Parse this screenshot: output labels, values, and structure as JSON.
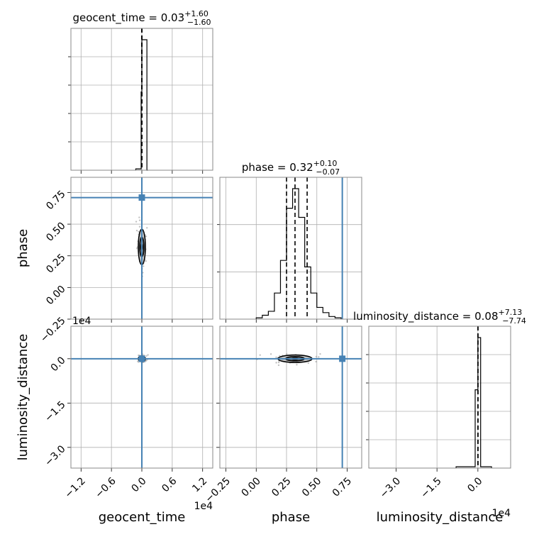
{
  "chart_data": {
    "type": "corner",
    "parameters": [
      "geocent_time",
      "phase",
      "luminosity_distance"
    ],
    "truth_color": "#4682b4",
    "line_color": "#000000",
    "grid": true,
    "panels": {
      "geocent_time_hist": {
        "title": "geocent_time = 0.03",
        "title_sup": "+1.60",
        "title_sub": "−1.60",
        "xlim": [
          -14000,
          14000
        ],
        "bins": [
          {
            "x0": -1200,
            "x1": -140,
            "h": 0.01
          },
          {
            "x0": -140,
            "x1": 0,
            "h": 0.6
          },
          {
            "x0": 0,
            "x1": 1000,
            "h": 1.0
          },
          {
            "x0": 1000,
            "x1": 1200,
            "h": 0.0
          }
        ],
        "quantiles": [
          -1.57,
          0.03,
          1.63
        ]
      },
      "phase_hist": {
        "title": "phase = 0.32",
        "title_sup": "+0.10",
        "title_sub": "−0.07",
        "xlim": [
          -0.3,
          0.87
        ],
        "bins": [
          {
            "x0": 0.0,
            "x1": 0.05,
            "h": 0.01
          },
          {
            "x0": 0.05,
            "x1": 0.1,
            "h": 0.03
          },
          {
            "x0": 0.1,
            "x1": 0.15,
            "h": 0.06
          },
          {
            "x0": 0.15,
            "x1": 0.2,
            "h": 0.2
          },
          {
            "x0": 0.2,
            "x1": 0.25,
            "h": 0.45
          },
          {
            "x0": 0.25,
            "x1": 0.3,
            "h": 0.85
          },
          {
            "x0": 0.3,
            "x1": 0.35,
            "h": 1.0
          },
          {
            "x0": 0.35,
            "x1": 0.4,
            "h": 0.78
          },
          {
            "x0": 0.4,
            "x1": 0.45,
            "h": 0.4
          },
          {
            "x0": 0.45,
            "x1": 0.5,
            "h": 0.2
          },
          {
            "x0": 0.5,
            "x1": 0.55,
            "h": 0.09
          },
          {
            "x0": 0.55,
            "x1": 0.6,
            "h": 0.05
          },
          {
            "x0": 0.6,
            "x1": 0.65,
            "h": 0.02
          },
          {
            "x0": 0.65,
            "x1": 0.7,
            "h": 0.01
          }
        ],
        "quantiles": [
          0.25,
          0.32,
          0.42
        ],
        "truth": 0.71
      },
      "luminosity_distance_hist": {
        "title": "luminosity_distance = 0.08",
        "title_sup": "+7.13",
        "title_sub": "−7.74",
        "xlim": [
          -40000,
          12000
        ],
        "bins": [
          {
            "x0": -8000,
            "x1": -1000,
            "h": 0.01
          },
          {
            "x0": -1000,
            "x1": 0,
            "h": 0.6
          },
          {
            "x0": 0,
            "x1": 1000,
            "h": 1.0
          },
          {
            "x0": 1000,
            "x1": 5000,
            "h": 0.01
          }
        ],
        "quantiles": [
          -7.66,
          0.08,
          7.21
        ]
      },
      "phase_vs_geocent_time": {
        "xlim": [
          -14000,
          14000
        ],
        "ylim": [
          -0.25,
          0.87
        ],
        "truth": {
          "x": 0,
          "y": 0.71
        },
        "contours": {
          "center_x": 0,
          "center_y": 0.32,
          "spread_x": 500,
          "spread_y": 0.1
        }
      },
      "luminosity_distance_vs_geocent_time": {
        "xlim": [
          -14000,
          14000
        ],
        "ylim": [
          -37000,
          11000
        ],
        "truth": {
          "x": 0,
          "y": 0
        },
        "contours": {
          "center_x": 0,
          "center_y": 0,
          "spread_x": 500,
          "spread_y": 700
        }
      },
      "luminosity_distance_vs_phase": {
        "xlim": [
          -0.3,
          0.87
        ],
        "ylim": [
          -37000,
          11000
        ],
        "truth": {
          "x": 0.71,
          "y": 0
        },
        "contours": {
          "center_x": 0.32,
          "center_y": 0,
          "spread_x": 0.1,
          "spread_y": 900
        }
      }
    },
    "axes": {
      "geocent_time": {
        "label": "geocent_time",
        "ticks": [
          -12000,
          -6000,
          0,
          6000,
          12000
        ],
        "tick_labels": [
          "−1.2",
          "−0.6",
          "0.0",
          "0.6",
          "1.2"
        ],
        "offset_text": "1e4"
      },
      "phase_x": {
        "label": "phase",
        "ticks": [
          -0.25,
          0,
          0.25,
          0.5,
          0.75
        ],
        "tick_labels": [
          "−0.25",
          "0.00",
          "0.25",
          "0.50",
          "0.75"
        ]
      },
      "phase_y": {
        "label": "phase",
        "ticks": [
          -0.25,
          0,
          0.25,
          0.5,
          0.75
        ],
        "tick_labels": [
          "−0.25",
          "0.00",
          "0.25",
          "0.50",
          "0.75"
        ]
      },
      "luminosity_distance_x": {
        "label": "luminosity_distance",
        "ticks": [
          -30000,
          -15000,
          0
        ],
        "tick_labels": [
          "−3.0",
          "−1.5",
          "0.0"
        ],
        "offset_text": "1e4"
      },
      "luminosity_distance_y": {
        "label": "luminosity_distance",
        "ticks": [
          -30000,
          -15000,
          0
        ],
        "tick_labels": [
          "−3.0",
          "−1.5",
          "0.0"
        ],
        "offset_text": "1e4"
      }
    }
  }
}
